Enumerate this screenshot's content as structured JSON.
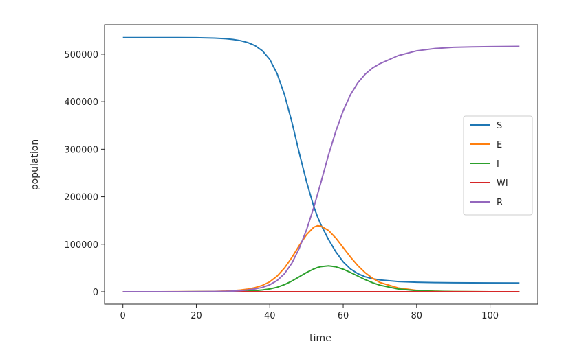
{
  "chart_data": {
    "type": "line",
    "title": "",
    "xlabel": "time",
    "ylabel": "population",
    "xlim": [
      -5,
      113
    ],
    "ylim": [
      -26000,
      562000
    ],
    "x_ticks": [
      0,
      20,
      40,
      60,
      80,
      100
    ],
    "y_ticks": [
      0,
      100000,
      200000,
      300000,
      400000,
      500000
    ],
    "grid": false,
    "legend_position": "center-right",
    "x": [
      0,
      5,
      10,
      15,
      20,
      25,
      28,
      30,
      32,
      34,
      36,
      38,
      40,
      42,
      44,
      46,
      48,
      50,
      52,
      53,
      54,
      56,
      58,
      60,
      62,
      64,
      66,
      68,
      70,
      75,
      80,
      85,
      90,
      95,
      100,
      108
    ],
    "series": [
      {
        "name": "S",
        "color": "#1f77b4",
        "values": [
          535000,
          535000,
          535000,
          534900,
          534700,
          533800,
          532600,
          531000,
          528500,
          524500,
          518000,
          507000,
          489000,
          459000,
          415000,
          358000,
          293000,
          232000,
          179000,
          158000,
          140000,
          110000,
          84000,
          63000,
          48000,
          38000,
          31500,
          27500,
          25000,
          21500,
          20000,
          19300,
          18900,
          18700,
          18600,
          18500
        ]
      },
      {
        "name": "E",
        "color": "#ff7f0e",
        "values": [
          0,
          20,
          60,
          150,
          350,
          800,
          1500,
          2300,
          3600,
          5600,
          8700,
          13500,
          21000,
          33000,
          50000,
          72000,
          97000,
          120000,
          136000,
          139000,
          138000,
          129000,
          113000,
          93000,
          73000,
          55000,
          40000,
          28500,
          19500,
          8000,
          3000,
          1100,
          400,
          150,
          60,
          10
        ]
      },
      {
        "name": "I",
        "color": "#2ca02c",
        "values": [
          0,
          5,
          15,
          40,
          100,
          220,
          400,
          620,
          950,
          1500,
          2400,
          3800,
          6000,
          9500,
          15000,
          22500,
          31500,
          40500,
          48000,
          51000,
          53000,
          54500,
          52500,
          47500,
          40500,
          33000,
          25500,
          19000,
          13800,
          5800,
          2300,
          900,
          350,
          130,
          50,
          8
        ]
      },
      {
        "name": "WI",
        "color": "#d62728",
        "values": [
          0,
          0,
          0,
          0,
          0,
          0,
          0,
          0,
          0,
          0,
          0,
          0,
          0,
          0,
          0,
          0,
          0,
          0,
          0,
          0,
          0,
          0,
          0,
          0,
          0,
          0,
          0,
          0,
          0,
          0,
          0,
          0,
          0,
          0,
          0,
          0
        ]
      },
      {
        "name": "R",
        "color": "#9467bd",
        "values": [
          0,
          10,
          30,
          80,
          200,
          500,
          900,
          1500,
          2400,
          3800,
          5900,
          9300,
          14800,
          23700,
          38000,
          60000,
          91000,
          130000,
          178000,
          205000,
          232000,
          288000,
          338000,
          381000,
          415000,
          440000,
          458000,
          471000,
          480000,
          497000,
          507000,
          512000,
          514500,
          515500,
          516000,
          516500
        ]
      }
    ]
  }
}
